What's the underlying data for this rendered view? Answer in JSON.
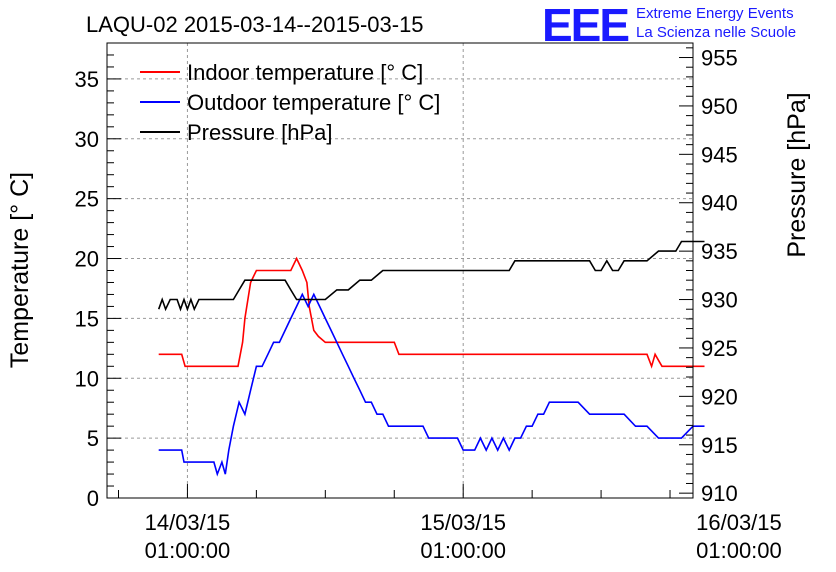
{
  "chart_data": {
    "type": "line",
    "title": "LAQU-02 2015-03-14--2015-03-15",
    "ylabel_left": "Temperature [° C]",
    "ylabel_right": "Pressure [hPa]",
    "xlabel": "",
    "ylim_left": [
      0,
      38
    ],
    "ylim_right": [
      909.5,
      956.5
    ],
    "xlim_hours": [
      -7,
      44
    ],
    "grid": true,
    "legend_position": "top-left",
    "x_ticks": [
      {
        "date": "14/03/15",
        "time": "01:00:00",
        "hour": 0
      },
      {
        "date": "15/03/15",
        "time": "01:00:00",
        "hour": 24
      },
      {
        "date": "16/03/15",
        "time": "01:00:00",
        "hour": 48
      }
    ],
    "y_ticks_left": [
      0,
      5,
      10,
      15,
      20,
      25,
      30,
      35
    ],
    "y_ticks_right": [
      910,
      915,
      920,
      925,
      930,
      935,
      940,
      945,
      950,
      955
    ],
    "series": [
      {
        "name": "Indoor temperature [° C]",
        "color": "#ff0000",
        "axis": "left",
        "x": [
          -2.5,
          -0.5,
          -0.2,
          4.4,
          4.6,
          4.8,
          5.0,
          5.5,
          6.0,
          6.5,
          7.0,
          8.0,
          9.0,
          9.5,
          10.0,
          10.4,
          10.6,
          11.0,
          11.4,
          12.0,
          13.0,
          16.0,
          17.0,
          18.0,
          18.4,
          19.0,
          30.0,
          40.0,
          40.4,
          40.7,
          41.0,
          41.3,
          45.0
        ],
        "y": [
          12,
          12,
          11,
          11,
          12,
          13,
          15,
          18,
          19,
          19,
          19,
          19,
          19,
          20,
          19,
          18,
          16,
          14,
          13.5,
          13,
          13,
          13,
          13,
          13,
          12,
          12,
          12,
          12,
          11,
          12,
          11.5,
          11,
          11
        ]
      },
      {
        "name": "Outdoor temperature [° C]",
        "color": "#0000ff",
        "axis": "left",
        "x": [
          -2.5,
          -0.5,
          -0.3,
          2.0,
          2.3,
          2.6,
          3.0,
          3.3,
          3.6,
          4.0,
          4.5,
          5.0,
          5.5,
          6.0,
          6.5,
          7.0,
          7.5,
          8.0,
          8.5,
          9.0,
          9.5,
          10.0,
          10.5,
          11.0,
          11.5,
          12.0,
          12.5,
          13.0,
          13.5,
          14.0,
          14.5,
          15.0,
          15.5,
          16.0,
          16.5,
          17.0,
          17.5,
          18.0,
          18.5,
          19.0,
          19.5,
          20.0,
          20.5,
          21.0,
          21.5,
          22.0,
          22.5,
          23.0,
          23.5,
          24.0,
          24.5,
          25.0,
          25.5,
          26.0,
          26.5,
          27.0,
          27.5,
          28.0,
          28.5,
          29.0,
          29.5,
          30.0,
          30.5,
          31.0,
          31.5,
          32.0,
          32.5,
          33.0,
          34.0,
          35.0,
          36.0,
          37.0,
          38.0,
          39.0,
          40.0,
          41.0,
          42.0,
          43.0,
          44.0,
          45.0
        ],
        "y": [
          4,
          4,
          3,
          3,
          3,
          2,
          3,
          2,
          4,
          6,
          8,
          7,
          9,
          11,
          11,
          12,
          13,
          13,
          14,
          15,
          16,
          17,
          16,
          17,
          16,
          15,
          14,
          13,
          12,
          11,
          10,
          9,
          8,
          8,
          7,
          7,
          6,
          6,
          6,
          6,
          6,
          6,
          6,
          5,
          5,
          5,
          5,
          5,
          5,
          4,
          4,
          4,
          5,
          4,
          5,
          4,
          5,
          4,
          5,
          5,
          6,
          6,
          7,
          7,
          8,
          8,
          8,
          8,
          8,
          7,
          7,
          7,
          7,
          6,
          6,
          5,
          5,
          5,
          6,
          6
        ]
      },
      {
        "name": "Pressure [hPa]",
        "color": "#000000",
        "axis": "right",
        "x": [
          -2.5,
          -2.2,
          -1.9,
          -1.5,
          -0.9,
          -0.6,
          -0.3,
          0.0,
          0.3,
          0.6,
          1.0,
          1.5,
          2.0,
          2.5,
          3.0,
          4.0,
          4.5,
          5.0,
          5.5,
          6.0,
          7.0,
          8.0,
          8.5,
          9.0,
          9.5,
          10.0,
          10.5,
          11.0,
          11.5,
          12.0,
          13.0,
          14.0,
          15.0,
          16.0,
          17.0,
          18.0,
          19.0,
          20.0,
          22.0,
          24.0,
          26.0,
          28.0,
          28.5,
          29.0,
          31.0,
          33.0,
          35.0,
          35.5,
          36.0,
          36.5,
          37.0,
          37.5,
          38.0,
          39.0,
          40.0,
          41.0,
          42.0,
          42.5,
          43.0,
          44.0,
          45.0
        ],
        "y": [
          929,
          930,
          929,
          930,
          930,
          929,
          930,
          929,
          930,
          929,
          930,
          930,
          930,
          930,
          930,
          930,
          931,
          932,
          932,
          932,
          932,
          932,
          932,
          931,
          930,
          930,
          930,
          930,
          930,
          930,
          931,
          931,
          932,
          932,
          933,
          933,
          933,
          933,
          933,
          933,
          933,
          933,
          934,
          934,
          934,
          934,
          934,
          933,
          933,
          934,
          933,
          933,
          934,
          934,
          934,
          935,
          935,
          935,
          936,
          936,
          936
        ]
      }
    ]
  },
  "logo": {
    "mark": "EEE",
    "line1": "Extreme Energy Events",
    "line2": "La Scienza nelle Scuole"
  }
}
